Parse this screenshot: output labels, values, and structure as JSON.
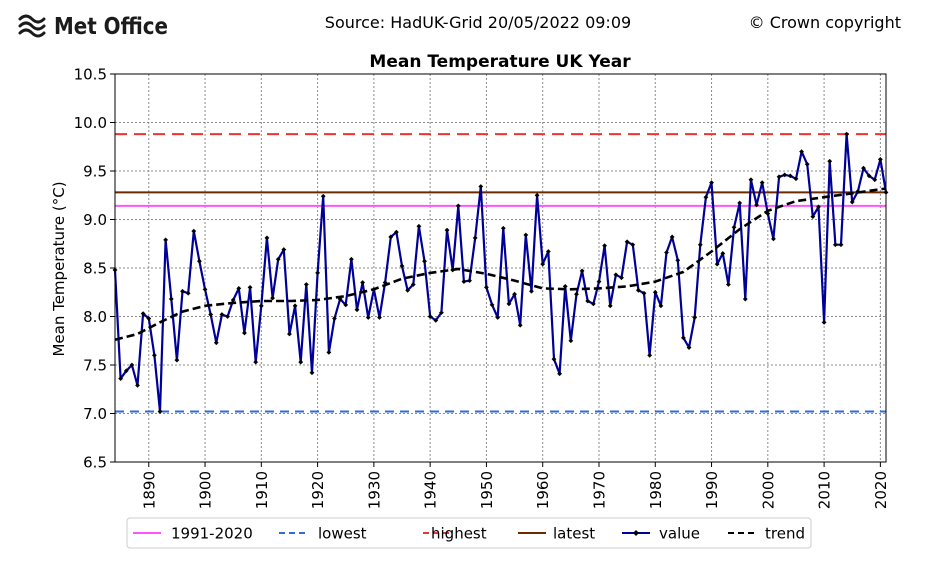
{
  "header": {
    "brand": "Met Office",
    "source": "Source: HadUK-Grid 20/05/2022 09:09",
    "copyright": "© Crown copyright"
  },
  "colors": {
    "baseline": "#ff55ff",
    "lowest": "#2f6be0",
    "highest": "#ee3333",
    "latest": "#6b2a00",
    "value": "#000099",
    "trend": "#000000"
  },
  "chart_data": {
    "type": "line",
    "title": "Mean Temperature UK Year",
    "ylabel": "Mean Temperature (°C)",
    "xlabel": "",
    "xlim": [
      1884,
      2021
    ],
    "ylim": [
      6.5,
      10.5
    ],
    "yticks": [
      "6.5",
      "7.0",
      "7.5",
      "8.0",
      "8.5",
      "9.0",
      "9.5",
      "10.0",
      "10.5"
    ],
    "xticks": [
      "1890",
      "1900",
      "1910",
      "1920",
      "1930",
      "1940",
      "1950",
      "1960",
      "1970",
      "1980",
      "1990",
      "2000",
      "2010",
      "2020"
    ],
    "grid": true,
    "legend_position": "bottom",
    "reference_lines": [
      {
        "name": "1991-2020",
        "value": 9.14
      },
      {
        "name": "lowest",
        "value": 7.02
      },
      {
        "name": "highest",
        "value": 9.88
      },
      {
        "name": "latest",
        "value": 9.28
      }
    ],
    "series": [
      {
        "name": "value",
        "x": [
          1884,
          1885,
          1886,
          1887,
          1888,
          1889,
          1890,
          1891,
          1892,
          1893,
          1894,
          1895,
          1896,
          1897,
          1898,
          1899,
          1900,
          1901,
          1902,
          1903,
          1904,
          1905,
          1906,
          1907,
          1908,
          1909,
          1910,
          1911,
          1912,
          1913,
          1914,
          1915,
          1916,
          1917,
          1918,
          1919,
          1920,
          1921,
          1922,
          1923,
          1924,
          1925,
          1926,
          1927,
          1928,
          1929,
          1930,
          1931,
          1932,
          1933,
          1934,
          1935,
          1936,
          1937,
          1938,
          1939,
          1940,
          1941,
          1942,
          1943,
          1944,
          1945,
          1946,
          1947,
          1948,
          1949,
          1950,
          1951,
          1952,
          1953,
          1954,
          1955,
          1956,
          1957,
          1958,
          1959,
          1960,
          1961,
          1962,
          1963,
          1964,
          1965,
          1966,
          1967,
          1968,
          1969,
          1970,
          1971,
          1972,
          1973,
          1974,
          1975,
          1976,
          1977,
          1978,
          1979,
          1980,
          1981,
          1982,
          1983,
          1984,
          1985,
          1986,
          1987,
          1988,
          1989,
          1990,
          1991,
          1992,
          1993,
          1994,
          1995,
          1996,
          1997,
          1998,
          1999,
          2000,
          2001,
          2002,
          2003,
          2004,
          2005,
          2006,
          2007,
          2008,
          2009,
          2010,
          2011,
          2012,
          2013,
          2014,
          2015,
          2016,
          2017,
          2018,
          2019,
          2020,
          2021
        ],
        "values": [
          8.48,
          7.36,
          7.44,
          7.5,
          7.29,
          8.03,
          7.98,
          7.6,
          7.02,
          8.79,
          8.18,
          7.55,
          8.26,
          8.24,
          8.88,
          8.57,
          8.28,
          8.02,
          7.73,
          8.02,
          8.0,
          8.17,
          8.29,
          7.83,
          8.3,
          7.53,
          8.11,
          8.81,
          8.19,
          8.59,
          8.69,
          7.82,
          8.11,
          7.53,
          8.33,
          7.42,
          8.45,
          9.24,
          7.63,
          7.98,
          8.18,
          8.12,
          8.59,
          8.07,
          8.35,
          7.99,
          8.28,
          7.99,
          8.35,
          8.82,
          8.87,
          8.52,
          8.27,
          8.33,
          8.93,
          8.57,
          8.0,
          7.96,
          8.04,
          8.89,
          8.48,
          9.14,
          8.36,
          8.37,
          8.81,
          9.34,
          8.3,
          8.12,
          7.99,
          8.91,
          8.13,
          8.23,
          7.91,
          8.84,
          8.26,
          9.25,
          8.54,
          8.67,
          7.56,
          7.41,
          8.31,
          7.75,
          8.23,
          8.47,
          8.16,
          8.13,
          8.36,
          8.73,
          8.11,
          8.43,
          8.4,
          8.77,
          8.74,
          8.27,
          8.24,
          7.6,
          8.25,
          8.11,
          8.66,
          8.82,
          8.58,
          7.78,
          7.68,
          7.99,
          8.74,
          9.23,
          9.38,
          8.54,
          8.65,
          8.33,
          8.92,
          9.17,
          8.18,
          9.41,
          9.15,
          9.38,
          9.06,
          8.8,
          9.44,
          9.46,
          9.45,
          9.42,
          9.7,
          9.57,
          9.03,
          9.13,
          7.94,
          9.6,
          8.74,
          8.74,
          9.88,
          9.18,
          9.29,
          9.53,
          9.45,
          9.41,
          9.62,
          9.28
        ]
      },
      {
        "name": "trend",
        "x": [
          1884,
          1888,
          1892,
          1896,
          1900,
          1905,
          1910,
          1915,
          1920,
          1925,
          1930,
          1935,
          1940,
          1945,
          1950,
          1955,
          1960,
          1965,
          1970,
          1975,
          1980,
          1985,
          1990,
          1995,
          2000,
          2005,
          2010,
          2015,
          2021
        ],
        "values": [
          7.76,
          7.82,
          7.94,
          8.05,
          8.11,
          8.14,
          8.16,
          8.16,
          8.17,
          8.21,
          8.28,
          8.39,
          8.45,
          8.49,
          8.44,
          8.37,
          8.29,
          8.28,
          8.29,
          8.31,
          8.36,
          8.46,
          8.67,
          8.9,
          9.09,
          9.19,
          9.23,
          9.27,
          9.32
        ]
      }
    ],
    "legend": [
      {
        "name": "1991-2020",
        "style": "solid",
        "color": "#ff55ff"
      },
      {
        "name": "lowest",
        "style": "dashed",
        "color": "#2f6be0"
      },
      {
        "name": "highest",
        "style": "dashed",
        "color": "#ee3333"
      },
      {
        "name": "latest",
        "style": "solid",
        "color": "#6b2a00"
      },
      {
        "name": "value",
        "style": "solid-marker",
        "color": "#000099"
      },
      {
        "name": "trend",
        "style": "dashed",
        "color": "#000000"
      }
    ]
  }
}
